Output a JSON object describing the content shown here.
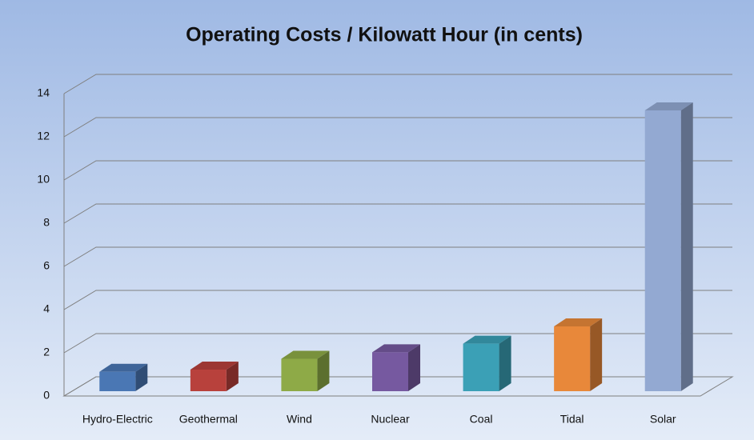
{
  "chart_data": {
    "type": "bar3d",
    "title": "Operating Costs / Kilowatt Hour (in cents)",
    "categories": [
      "Hydro-Electric",
      "Geothermal",
      "Wind",
      "Nuclear",
      "Coal",
      "Tidal",
      "Solar"
    ],
    "values": [
      0.9,
      1.0,
      1.5,
      1.8,
      2.2,
      3.0,
      13.0
    ],
    "colors": [
      "#4a77b4",
      "#b8413c",
      "#8eaa47",
      "#7659a0",
      "#3ba0b6",
      "#e8883a",
      "#93a9d2"
    ],
    "ylim": [
      0,
      14
    ],
    "yticks": [
      0,
      2,
      4,
      6,
      8,
      10,
      12,
      14
    ],
    "grid": true
  }
}
